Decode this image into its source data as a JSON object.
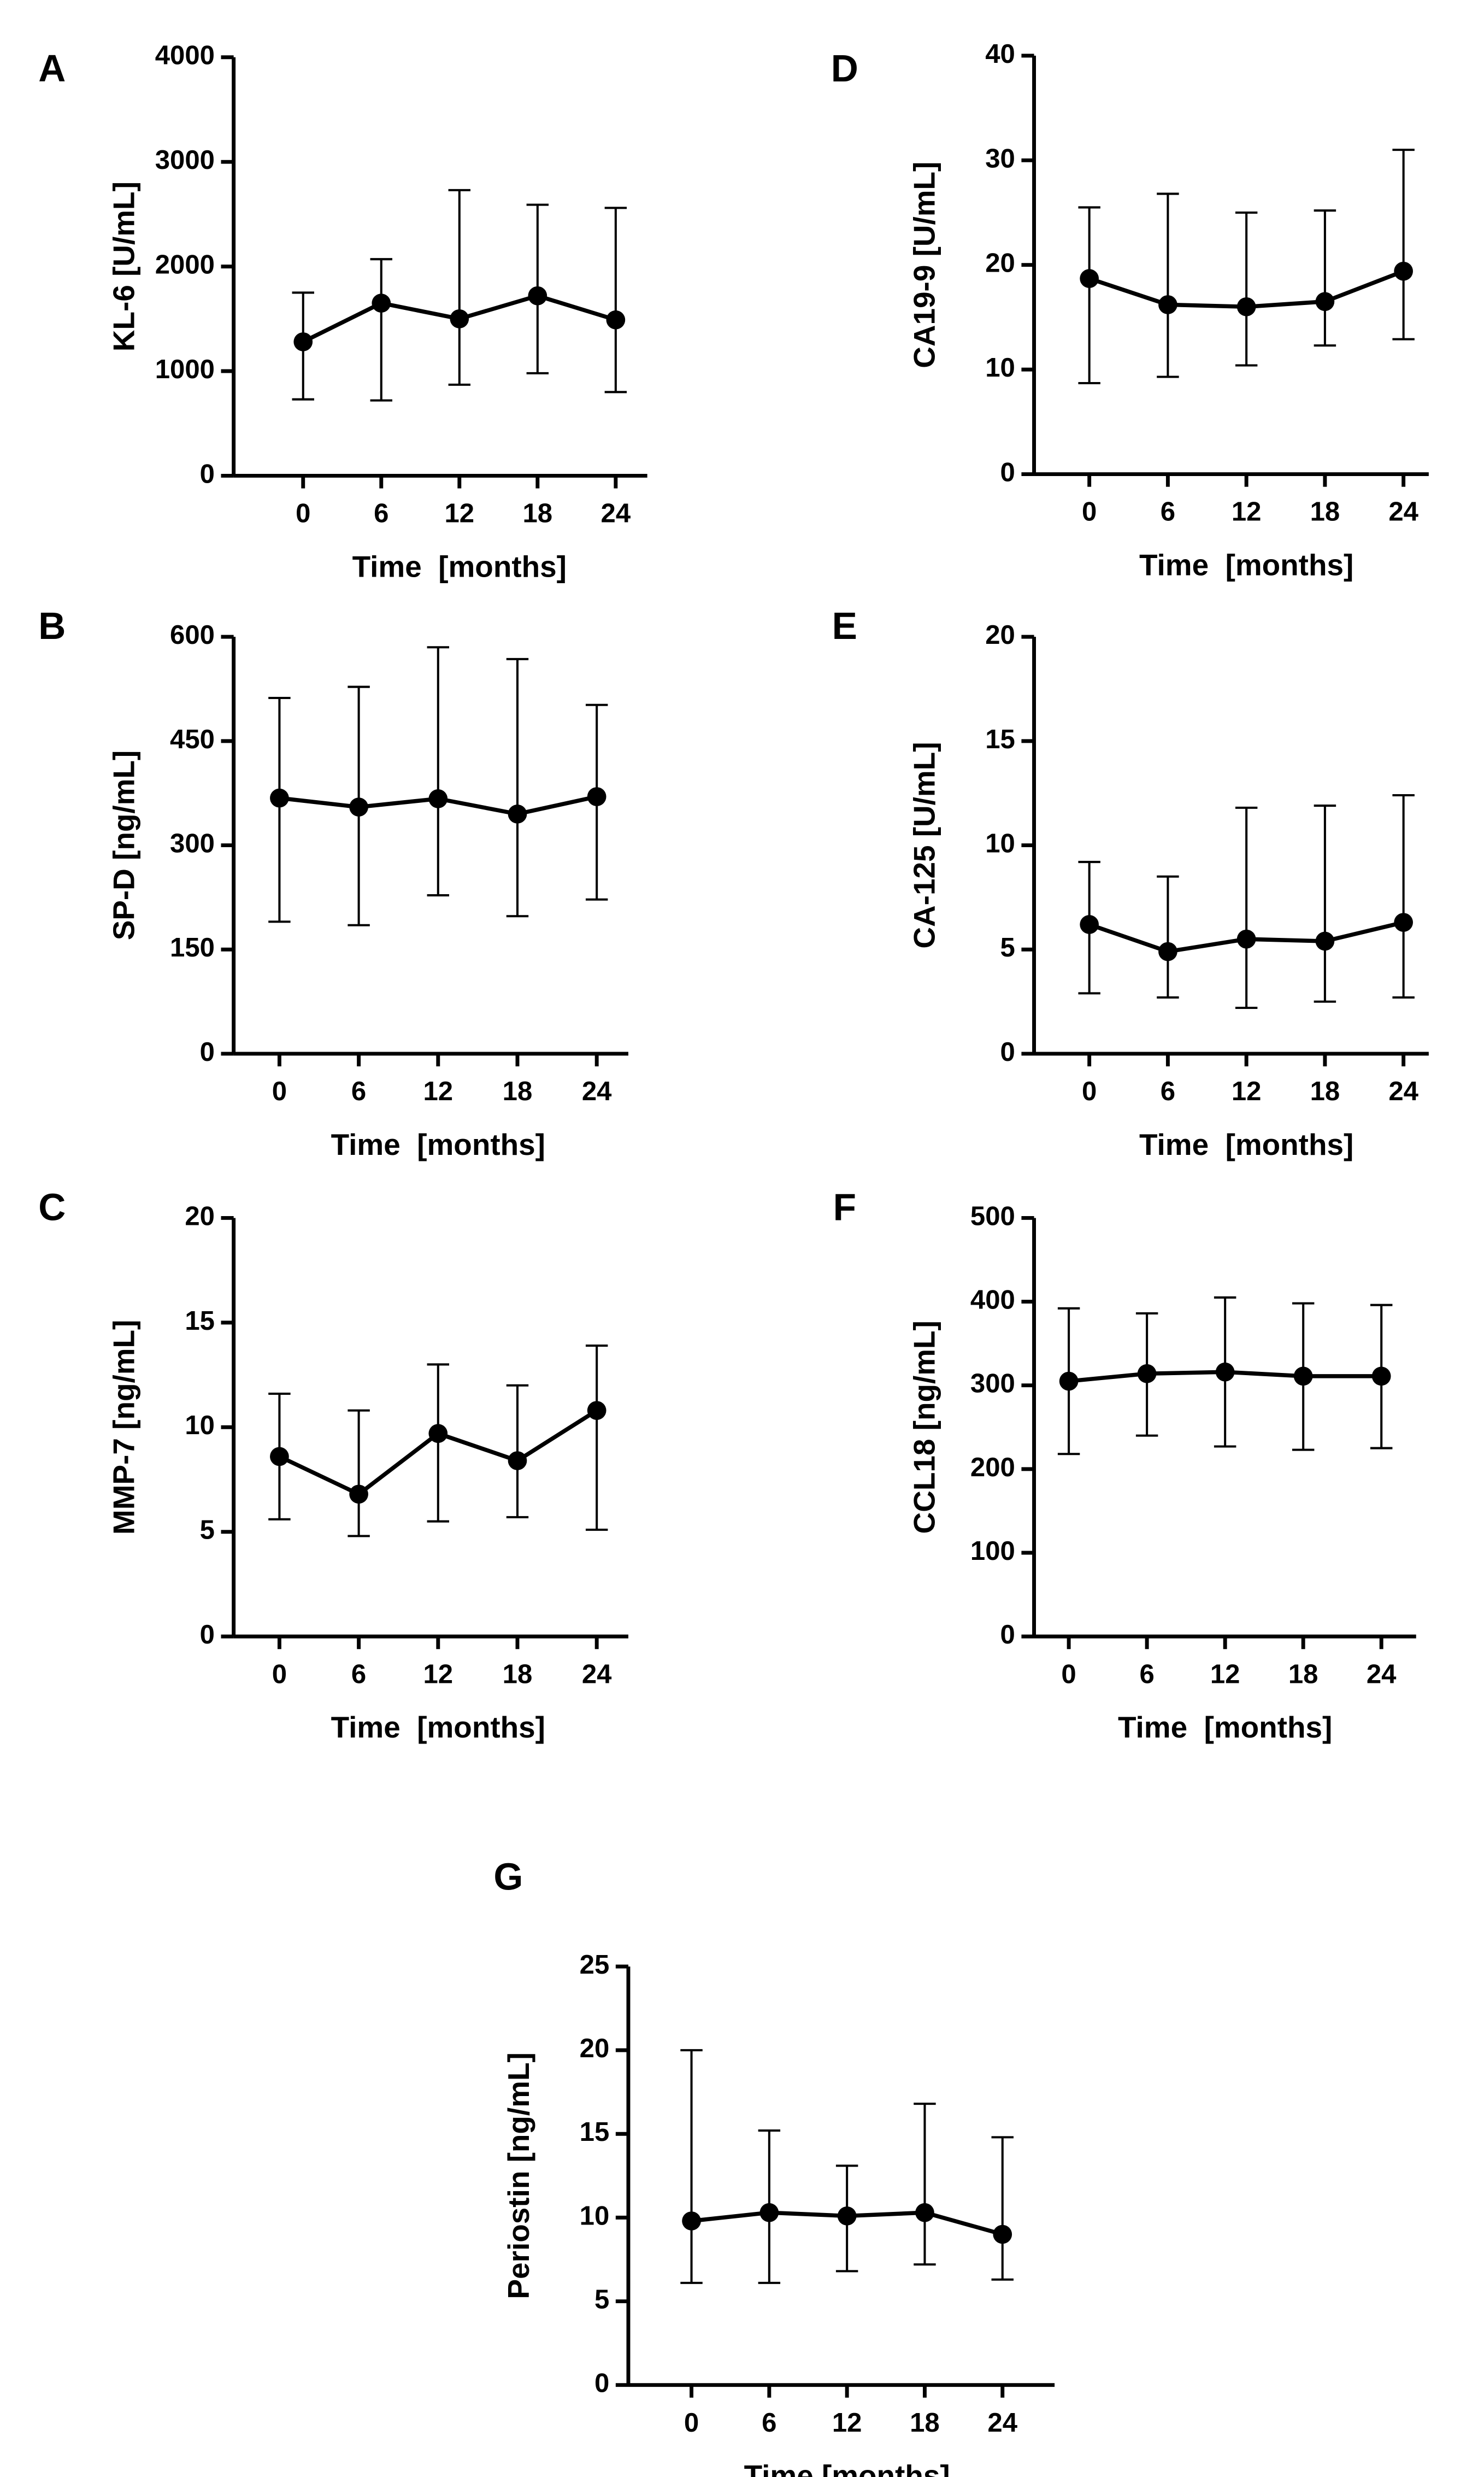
{
  "chart_data": [
    {
      "type": "line",
      "panel": "A",
      "ylabel": "KL-6 [U/mL]",
      "xlabel": "Time  [months]",
      "categories": [
        "0",
        "6",
        "12",
        "18",
        "24"
      ],
      "series": [
        {
          "color": "#000000",
          "values": [
            1280,
            1650,
            1500,
            1720,
            1490
          ],
          "lower": [
            730,
            720,
            870,
            980,
            800
          ],
          "upper": [
            1750,
            2070,
            2730,
            2590,
            2560
          ]
        }
      ],
      "ylim": [
        0,
        4000
      ],
      "yticks": [
        0,
        1000,
        2000,
        3000,
        4000
      ]
    },
    {
      "type": "line",
      "panel": "B",
      "ylabel": "SP-D [ng/mL]",
      "xlabel": "Time  [months]",
      "categories": [
        "0",
        "6",
        "12",
        "18",
        "24"
      ],
      "series": [
        {
          "color": "#000000",
          "values": [
            368,
            355,
            367,
            345,
            370
          ],
          "lower": [
            190,
            185,
            228,
            198,
            222
          ],
          "upper": [
            512,
            528,
            585,
            568,
            502
          ]
        }
      ],
      "ylim": [
        0,
        600
      ],
      "yticks": [
        0,
        150,
        300,
        450,
        600
      ]
    },
    {
      "type": "line",
      "panel": "C",
      "ylabel": "MMP-7 [ng/mL]",
      "xlabel": "Time  [months]",
      "categories": [
        "0",
        "6",
        "12",
        "18",
        "24"
      ],
      "series": [
        {
          "color": "#000000",
          "values": [
            8.6,
            6.8,
            9.7,
            8.4,
            10.8
          ],
          "lower": [
            5.6,
            4.8,
            5.5,
            5.7,
            5.1
          ],
          "upper": [
            11.6,
            10.8,
            13.0,
            12.0,
            13.9
          ]
        }
      ],
      "ylim": [
        0,
        20
      ],
      "yticks": [
        0,
        5,
        10,
        15,
        20
      ]
    },
    {
      "type": "line",
      "panel": "D",
      "ylabel": "CA19-9 [U/mL]",
      "xlabel": "Time  [months]",
      "categories": [
        "0",
        "6",
        "12",
        "18",
        "24"
      ],
      "series": [
        {
          "color": "#000000",
          "values": [
            18.7,
            16.2,
            16.0,
            16.5,
            19.4
          ],
          "lower": [
            8.7,
            9.3,
            10.4,
            12.3,
            12.9
          ],
          "upper": [
            25.5,
            26.8,
            25.0,
            25.2,
            31.0
          ]
        }
      ],
      "ylim": [
        0,
        40
      ],
      "yticks": [
        0,
        10,
        20,
        30,
        40
      ]
    },
    {
      "type": "line",
      "panel": "E",
      "ylabel": "CA-125 [U/mL]",
      "xlabel": "Time  [months]",
      "categories": [
        "0",
        "6",
        "12",
        "18",
        "24"
      ],
      "series": [
        {
          "color": "#000000",
          "values": [
            6.2,
            4.9,
            5.5,
            5.4,
            6.3
          ],
          "lower": [
            2.9,
            2.7,
            2.2,
            2.5,
            2.7
          ],
          "upper": [
            9.2,
            8.5,
            11.8,
            11.9,
            12.4
          ]
        }
      ],
      "ylim": [
        0,
        20
      ],
      "yticks": [
        0,
        5,
        10,
        15,
        20
      ]
    },
    {
      "type": "line",
      "panel": "F",
      "ylabel": "CCL18 [ng/mL]",
      "xlabel": "Time  [months]",
      "categories": [
        "0",
        "6",
        "12",
        "18",
        "24"
      ],
      "series": [
        {
          "color": "#000000",
          "values": [
            305,
            314,
            316,
            311,
            311
          ],
          "lower": [
            218,
            240,
            227,
            223,
            225
          ],
          "upper": [
            392,
            386,
            405,
            398,
            396
          ]
        }
      ],
      "ylim": [
        0,
        500
      ],
      "yticks": [
        0,
        100,
        200,
        300,
        400,
        500
      ]
    },
    {
      "type": "line",
      "panel": "G",
      "ylabel": "Periostin [ng/mL]",
      "xlabel": "Time [months]",
      "categories": [
        "0",
        "6",
        "12",
        "18",
        "24"
      ],
      "series": [
        {
          "color": "#000000",
          "values": [
            9.8,
            10.3,
            10.1,
            10.3,
            9.0
          ],
          "lower": [
            6.1,
            6.1,
            6.8,
            7.2,
            6.3
          ],
          "upper": [
            20.0,
            15.2,
            13.1,
            16.8,
            14.8
          ]
        }
      ],
      "ylim": [
        0,
        25
      ],
      "yticks": [
        0,
        5,
        10,
        15,
        20,
        25
      ]
    }
  ]
}
